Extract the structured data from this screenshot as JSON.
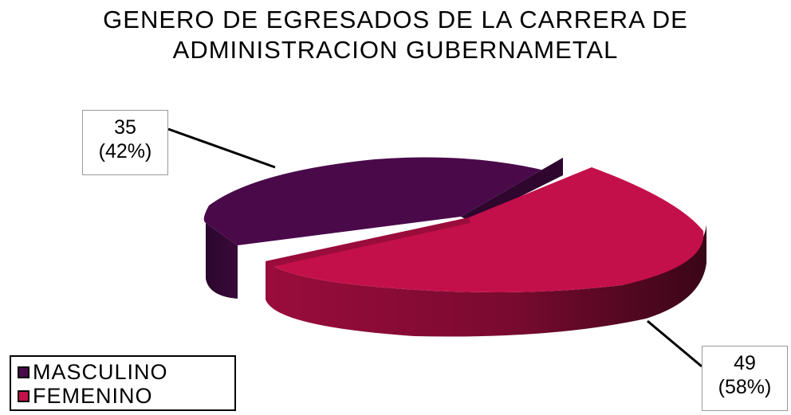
{
  "chart_data": {
    "type": "pie",
    "title_lines": [
      "GENERO DE EGRESADOS DE LA CARRERA DE",
      "ADMINISTRACION GUBERNAMETAL"
    ],
    "categories": [
      "MASCULINO",
      "FEMENINO"
    ],
    "values": [
      35,
      49
    ],
    "percent_labels": [
      "(42%)",
      "(58%)"
    ],
    "value_labels": [
      "35",
      "49"
    ],
    "colors": [
      "#4a0a4a",
      "#c4104a"
    ],
    "legend_position": "bottom-left",
    "style": "3d-exploded"
  }
}
